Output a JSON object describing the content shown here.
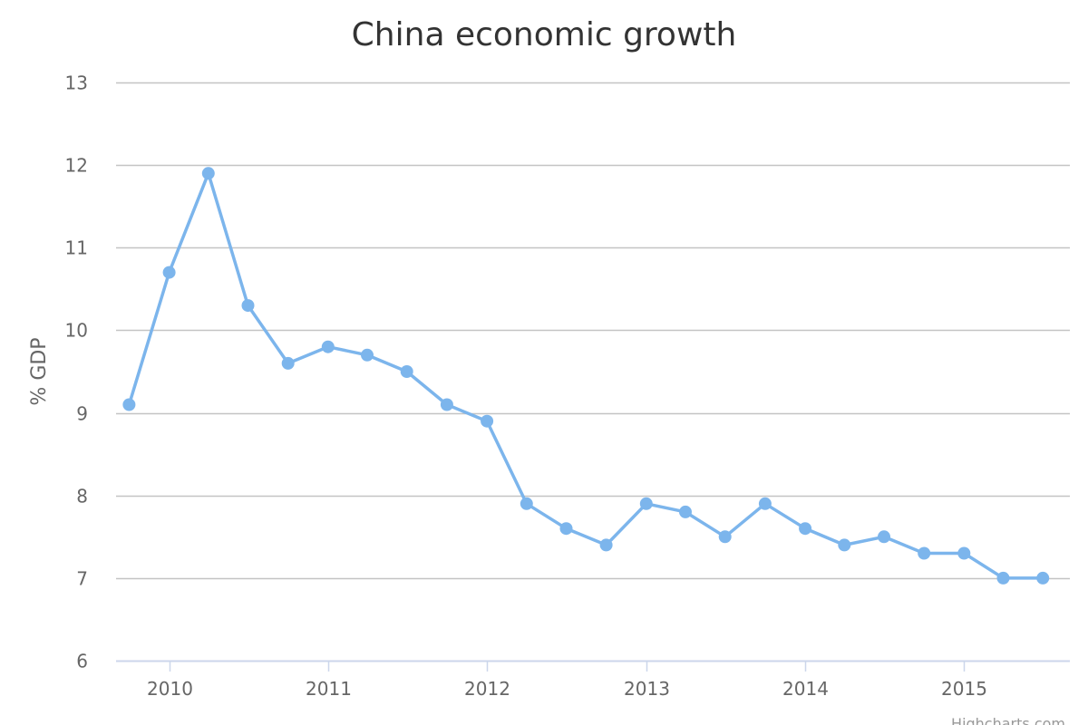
{
  "chart_data": {
    "type": "line",
    "title": "China economic growth",
    "xlabel": "",
    "ylabel": "% GDP",
    "ylim": [
      6,
      13
    ],
    "yticks": [
      "6",
      "7",
      "8",
      "9",
      "10",
      "11",
      "12",
      "13"
    ],
    "xlim": [
      "2009-09-01",
      "2015-09-01"
    ],
    "xticks": [
      "2010",
      "2011",
      "2012",
      "2013",
      "2014",
      "2015"
    ],
    "grid": true,
    "legend": "none",
    "series_color": "#7cb5ec",
    "series": [
      {
        "x": [
          "2009-10",
          "2010-01",
          "2010-04",
          "2010-07",
          "2010-10",
          "2011-01",
          "2011-04",
          "2011-07",
          "2011-10",
          "2012-01",
          "2012-04",
          "2012-07",
          "2012-10",
          "2013-01",
          "2013-04",
          "2013-07",
          "2013-10",
          "2014-01",
          "2014-04",
          "2014-07",
          "2014-10",
          "2015-01",
          "2015-04",
          "2015-07"
        ],
        "values": [
          9.1,
          10.7,
          11.9,
          10.3,
          9.6,
          9.8,
          9.7,
          9.5,
          9.1,
          8.9,
          7.9,
          7.6,
          7.4,
          7.9,
          7.8,
          7.5,
          7.9,
          7.6,
          7.4,
          7.5,
          7.3,
          7.3,
          7.0,
          7.0
        ]
      }
    ],
    "credits": "Highcharts.com"
  }
}
